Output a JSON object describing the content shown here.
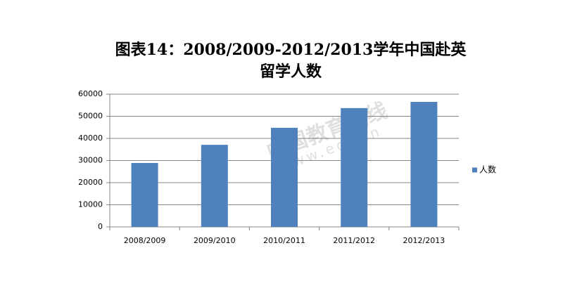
{
  "chart_data": {
    "type": "bar",
    "title": "图表14：2008/2009-2012/2013学年中国赴英留学人数",
    "categories": [
      "2008/2009",
      "2009/2010",
      "2010/2011",
      "2011/2012",
      "2012/2013"
    ],
    "series": [
      {
        "name": "人数",
        "color": "#4f81bd",
        "values": [
          28900,
          37100,
          44800,
          53700,
          56500
        ]
      }
    ],
    "ylim": [
      0,
      60000
    ],
    "yticks": [
      0,
      10000,
      20000,
      30000,
      40000,
      50000,
      60000
    ],
    "grid": true,
    "legend": "right",
    "annotations": [
      "中国教育在线",
      "www.eol.cn"
    ]
  }
}
